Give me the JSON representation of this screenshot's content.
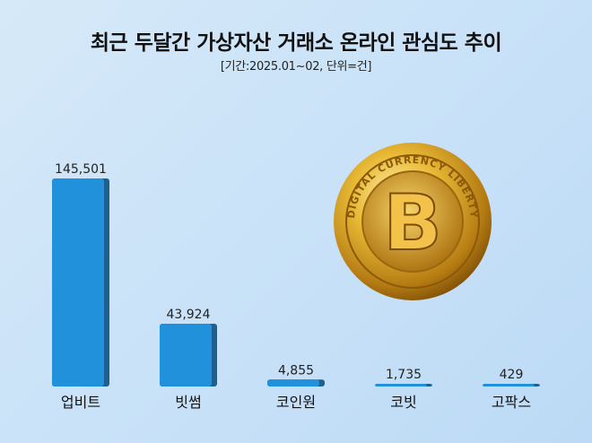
{
  "chart_data": {
    "type": "bar",
    "title": "최근 두달간 가상자산 거래소 온라인 관심도 추이",
    "subtitle": "[기간:2025.01~02, 단위=건]",
    "categories": [
      "업비트",
      "빗썸",
      "코인원",
      "코빗",
      "고팍스"
    ],
    "values": [
      145501,
      43924,
      4855,
      1735,
      429
    ],
    "value_labels": [
      "145,501",
      "43,924",
      "4,855",
      "1,735",
      "429"
    ],
    "xlabel": "",
    "ylabel": "",
    "ylim": [
      0,
      145501
    ],
    "grid": false,
    "colors": {
      "bar": "#2191dc",
      "bar_side": "#1d5f8e",
      "coin": "#d9a526"
    }
  },
  "decoration": {
    "coin_logo_text": "DIGITAL CURRENCY LIBERTY"
  }
}
